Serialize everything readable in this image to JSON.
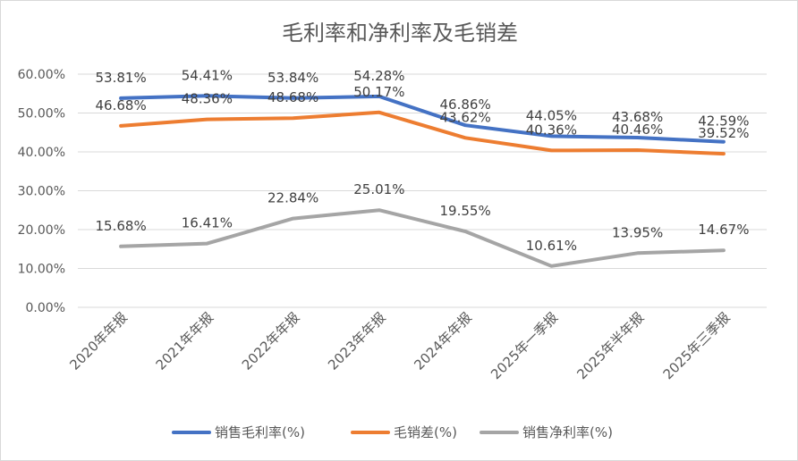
{
  "chart_data": {
    "type": "line",
    "title": "毛利率和净利率及毛销差",
    "categories": [
      "2020年年报",
      "2021年年报",
      "2022年年报",
      "2023年年报",
      "2024年年报",
      "2025年一季报",
      "2025年半年报",
      "2025年三季报"
    ],
    "ylim": [
      0,
      60
    ],
    "yticks": [
      "0.00%",
      "10.00%",
      "20.00%",
      "30.00%",
      "40.00%",
      "50.00%",
      "60.00%"
    ],
    "ytick_values": [
      0,
      10,
      20,
      30,
      40,
      50,
      60
    ],
    "xlabel": "",
    "ylabel": "",
    "grid": true,
    "legend": "bottom",
    "series": [
      {
        "name": "销售毛利率(%)",
        "color": "#4472C4",
        "values": [
          53.81,
          54.41,
          53.84,
          54.28,
          46.86,
          44.05,
          43.68,
          42.59
        ],
        "labels": [
          "53.81%",
          "54.41%",
          "53.84%",
          "54.28%",
          "46.86%",
          "44.05%",
          "43.68%",
          "42.59%"
        ]
      },
      {
        "name": "毛销差(%)",
        "color": "#ED7D31",
        "values": [
          46.68,
          48.36,
          48.68,
          50.17,
          43.62,
          40.36,
          40.46,
          39.52
        ],
        "labels": [
          "46.68%",
          "48.36%",
          "48.68%",
          "50.17%",
          "43.62%",
          "40.36%",
          "40.46%",
          "39.52%"
        ]
      },
      {
        "name": "销售净利率(%)",
        "color": "#A5A5A5",
        "values": [
          15.68,
          16.41,
          22.84,
          25.01,
          19.55,
          10.61,
          13.95,
          14.67
        ],
        "labels": [
          "15.68%",
          "16.41%",
          "22.84%",
          "25.01%",
          "19.55%",
          "10.61%",
          "13.95%",
          "14.67%"
        ]
      }
    ]
  }
}
